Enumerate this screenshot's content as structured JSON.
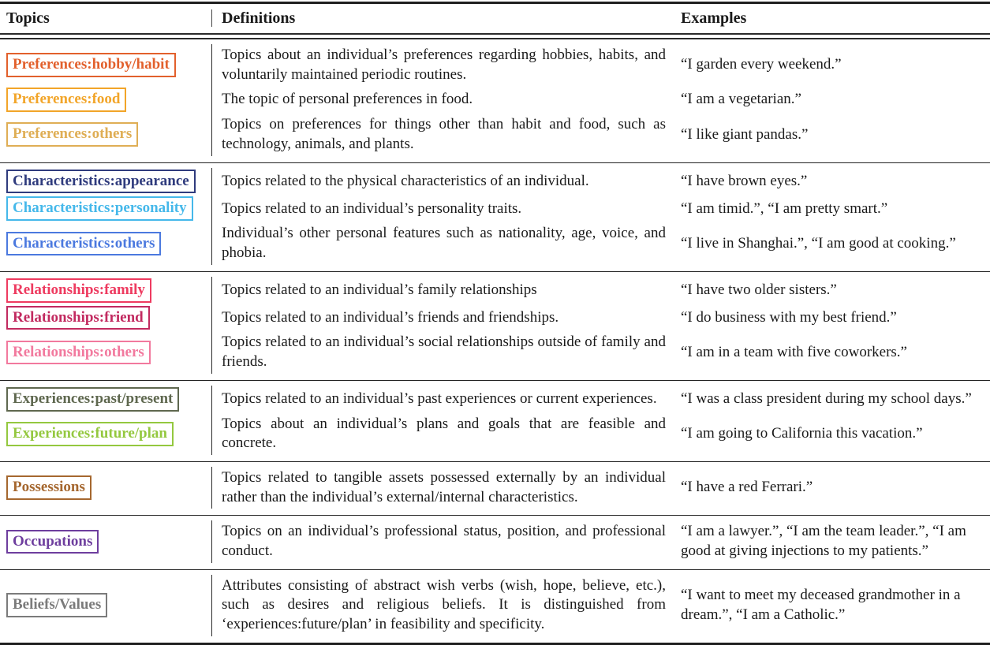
{
  "table": {
    "headers": [
      "Topics",
      "Definitions",
      "Examples"
    ],
    "groups": [
      {
        "rows": [
          {
            "topic": "Preferences:hobby/habit",
            "color": "#E2602C",
            "definition": "Topics about an individual’s preferences regarding hobbies, habits, and voluntarily maintained periodic routines.",
            "example": "“I garden every weekend.”"
          },
          {
            "topic": "Preferences:food",
            "color": "#F2A529",
            "definition": "The topic of personal preferences in food.",
            "example": "“I am a vegetarian.”"
          },
          {
            "topic": "Preferences:others",
            "color": "#DFAE55",
            "definition": "Topics on preferences for things other than habit and food, such as technology, animals, and plants.",
            "example": "“I like giant pandas.”"
          }
        ]
      },
      {
        "rows": [
          {
            "topic": "Characteristics:appearance",
            "color": "#2F3B7D",
            "definition": "Topics related to the physical characteristics of an individual.",
            "example": "“I have brown eyes.”"
          },
          {
            "topic": "Characteristics:personality",
            "color": "#45B8EA",
            "definition": "Topics related to an individual’s personality traits.",
            "example": "“I am timid.”, “I am pretty smart.”"
          },
          {
            "topic": "Characteristics:others",
            "color": "#4B79DF",
            "definition": "Individual’s other personal features such as nationality, age, voice, and phobia.",
            "example": "“I live in Shanghai.”, “I am good at cooking.”"
          }
        ]
      },
      {
        "rows": [
          {
            "topic": "Relationships:family",
            "color": "#EE3B60",
            "definition": "Topics related to an individual’s family relationships",
            "example": "“I have two older sisters.”"
          },
          {
            "topic": "Relationships:friend",
            "color": "#C22A60",
            "definition": "Topics related to an individual’s friends and friendships.",
            "example": "“I do business with my best friend.”"
          },
          {
            "topic": "Relationships:others",
            "color": "#F2799E",
            "definition": "Topics related to an individual’s social relationships outside of family and friends.",
            "example": "“I am in a team with five coworkers.”"
          }
        ]
      },
      {
        "rows": [
          {
            "topic": "Experiences:past/present",
            "color": "#5F684F",
            "definition": "Topics related to an individual’s past experiences or current experiences.",
            "example": "“I was a class president during my school days.”"
          },
          {
            "topic": "Experiences:future/plan",
            "color": "#94C83F",
            "definition": "Topics about an individual’s plans and goals that are feasible and concrete.",
            "example": "“I am going to California this vacation.”"
          }
        ]
      },
      {
        "rows": [
          {
            "topic": "Possessions",
            "color": "#A5672F",
            "definition": "Topics related to tangible assets possessed externally by an individual rather than the individual’s external/internal characteristics.",
            "example": "“I have a red Ferrari.”"
          }
        ]
      },
      {
        "rows": [
          {
            "topic": "Occupations",
            "color": "#6E3E9E",
            "definition": "Topics on an individual’s professional status, position, and professional conduct.",
            "example": "“I am a lawyer.”, “I am the team leader.”, “I am good at giving injections to my patients.”"
          }
        ]
      },
      {
        "rows": [
          {
            "topic": "Beliefs/Values",
            "color": "#7B7B7B",
            "definition": "Attributes consisting of abstract wish verbs (wish, hope, believe, etc.), such as desires and religious beliefs. It is distinguished from ‘experiences:future/plan’ in feasibility and specificity.",
            "example": "“I want to meet my deceased grandmother in a dream.”, “I am a Catholic.”"
          }
        ]
      }
    ]
  }
}
